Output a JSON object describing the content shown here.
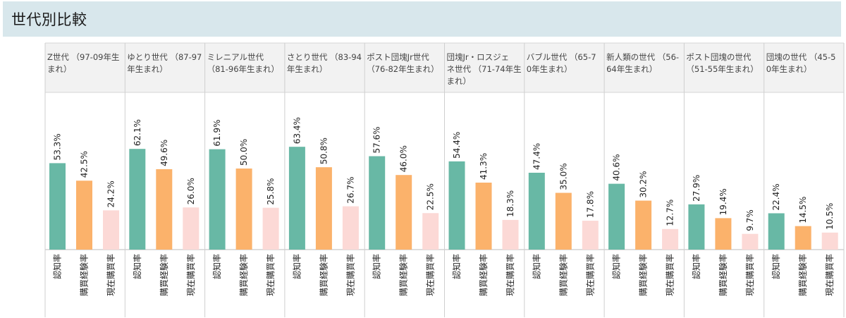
{
  "section_title": "世代別比較",
  "chart_data": {
    "type": "bar",
    "title": "世代別比較",
    "series": [
      {
        "name": "認知率",
        "color": "#68b8a5",
        "values": [
          53.3,
          62.1,
          61.9,
          63.4,
          57.6,
          54.4,
          47.4,
          40.6,
          27.9,
          22.4
        ]
      },
      {
        "name": "購買経験率",
        "color": "#fbb26b",
        "values": [
          42.5,
          49.6,
          50.0,
          50.8,
          46.0,
          41.3,
          35.0,
          30.2,
          19.4,
          14.5
        ]
      },
      {
        "name": "現在購買率",
        "color": "#fcd9d6",
        "values": [
          24.2,
          26.0,
          25.8,
          26.7,
          22.5,
          18.3,
          17.8,
          12.7,
          9.7,
          10.5
        ]
      }
    ],
    "value_labels": [
      [
        "53.3%",
        "42.5%",
        "24.2%"
      ],
      [
        "62.1%",
        "49.6%",
        "26.0%"
      ],
      [
        "61.9%",
        "50.0%",
        "25.8%"
      ],
      [
        "63.4%",
        "50.8%",
        "26.7%"
      ],
      [
        "57.6%",
        "46.0%",
        "22.5%"
      ],
      [
        "54.4%",
        "41.3%",
        "18.3%"
      ],
      [
        "47.4%",
        "35.0%",
        "17.8%"
      ],
      [
        "40.6%",
        "30.2%",
        "12.7%"
      ],
      [
        "27.9%",
        "19.4%",
        "9.7%"
      ],
      [
        "22.4%",
        "14.5%",
        "10.5%"
      ]
    ],
    "ylim": [
      0,
      100
    ],
    "groups": [
      {
        "name": "Z世代 （97-09年生まれ）",
        "lines": [
          "Z世代 （97-09年生",
          "まれ）"
        ]
      },
      {
        "name": "ゆとり世代 （87-97年生まれ）",
        "lines": [
          "ゆとり世代 （87-97",
          "年生まれ）"
        ]
      },
      {
        "name": "ミレニアル世代 （81-96年生まれ）",
        "lines": [
          "ミレニアル世代",
          "（81-96年生まれ）"
        ]
      },
      {
        "name": "さとり世代 （83-94年生まれ）",
        "lines": [
          "さとり世代 （83-94",
          "年生まれ）"
        ]
      },
      {
        "name": "ポスト団塊Jr世代 （76-82年生まれ）",
        "lines": [
          "ポスト団塊Jr世代",
          "（76-82年生まれ）"
        ]
      },
      {
        "name": "団塊Jr・ロスジェネ世代 （71-74年生まれ）",
        "lines": [
          "団塊Jr・ロスジェ",
          "ネ世代 （71-74年生",
          "まれ）"
        ]
      },
      {
        "name": "バブル世代 （65-70年生まれ）",
        "lines": [
          "バブル世代 （65-7",
          "0年生まれ）"
        ]
      },
      {
        "name": "新人類の世代 （56-64年生まれ）",
        "lines": [
          "新人類の世代 （56-",
          "64年生まれ）"
        ]
      },
      {
        "name": "ポスト団塊の世代 （51-55年生まれ）",
        "lines": [
          "ポスト団塊の世代",
          "（51-55年生まれ）"
        ]
      },
      {
        "name": "団塊の世代 （45-50年生まれ）",
        "lines": [
          "団塊の世代 （45-5",
          "0年生まれ）"
        ]
      }
    ]
  }
}
